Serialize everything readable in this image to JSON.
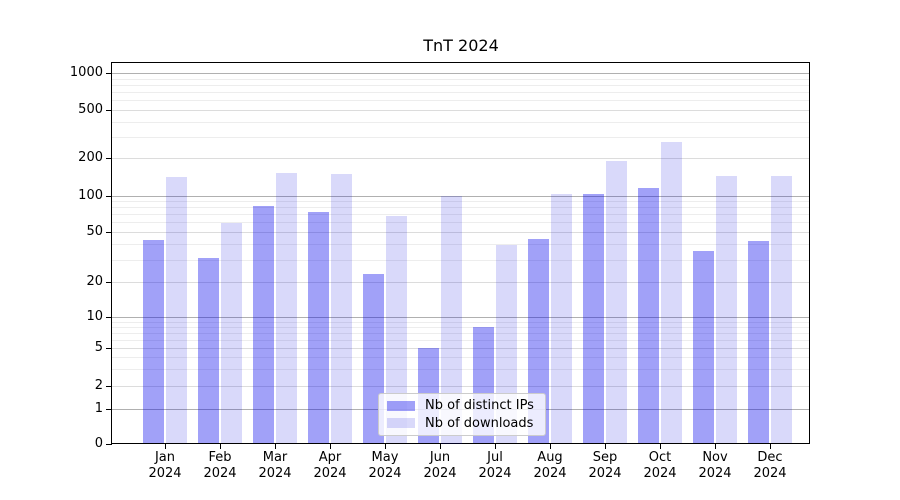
{
  "chart_data": {
    "type": "bar",
    "title": "TnT 2024",
    "categories": [
      "Jan",
      "Feb",
      "Mar",
      "Apr",
      "May",
      "Jun",
      "Jul",
      "Aug",
      "Sep",
      "Oct",
      "Nov",
      "Dec"
    ],
    "category_year": "2024",
    "series": [
      {
        "name": "Nb of distinct IPs",
        "color": "rgba(0,0,235,0.37)",
        "values": [
          43,
          31,
          82,
          73,
          23,
          5,
          8,
          44,
          103,
          116,
          35,
          42
        ]
      },
      {
        "name": "Nb of downloads",
        "color": "rgba(0,0,220,0.15)",
        "values": [
          140,
          59,
          153,
          148,
          68,
          100,
          39,
          103,
          190,
          275,
          145,
          143
        ]
      }
    ],
    "yticks": [
      0,
      1,
      2,
      5,
      10,
      20,
      50,
      100,
      200,
      500,
      1000
    ],
    "yscale": "symlog",
    "ylim": [
      0,
      1200
    ],
    "grid": true,
    "legend_position": "lower center",
    "accent_color_dark": "#a5a5f7",
    "accent_color_light": "#dbdbfa"
  }
}
